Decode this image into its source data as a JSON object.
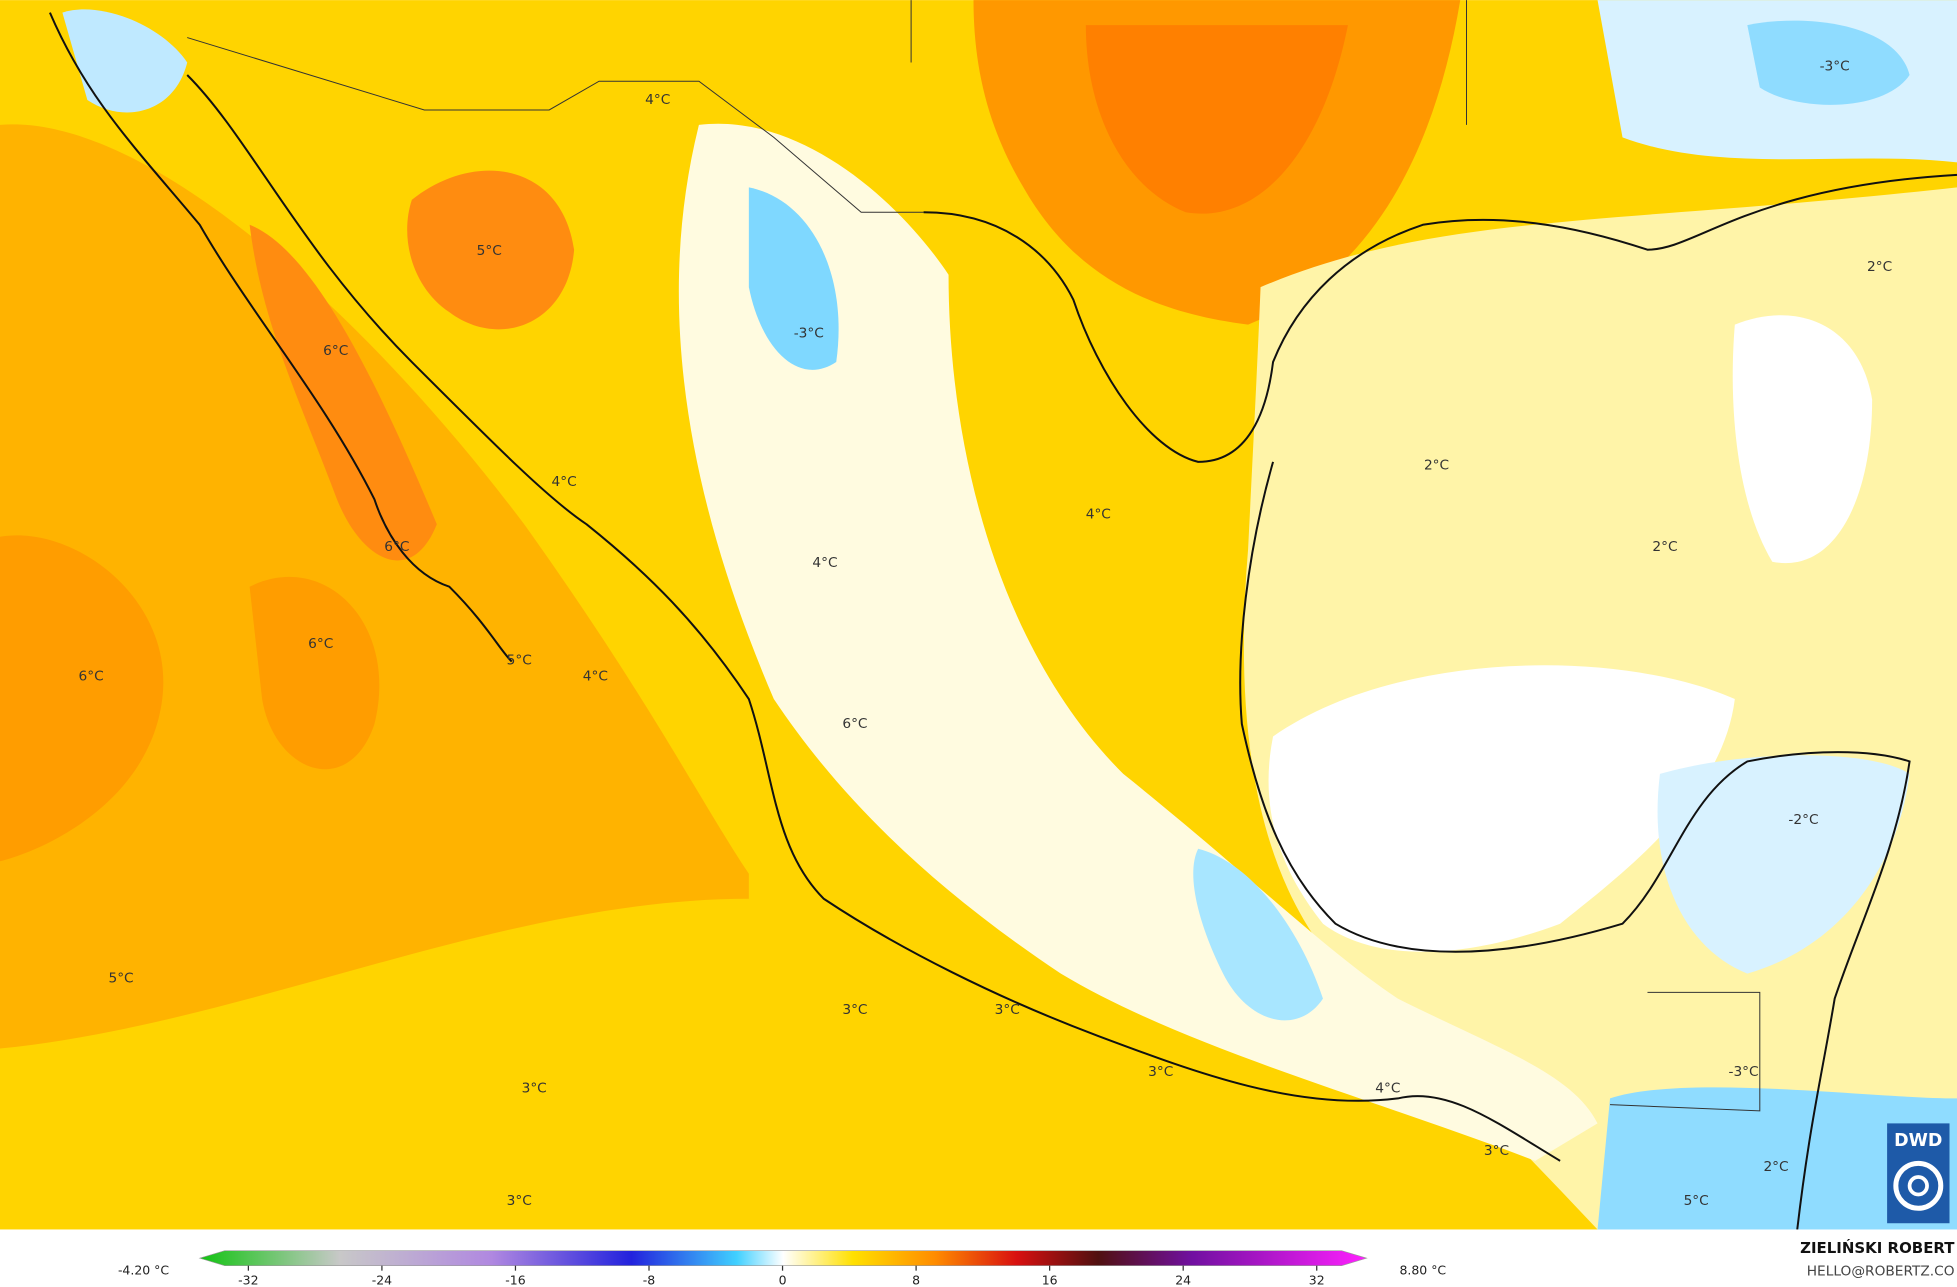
{
  "map": {
    "contour_labels": [
      "4°C",
      "5°C",
      "6°C",
      "-3°C",
      "-3°C",
      "2°C",
      "4°C",
      "2°C",
      "4°C",
      "6°C",
      "2°C",
      "4°C",
      "6°C",
      "5°C",
      "4°C",
      "6°C",
      "6°C",
      "-2°C",
      "5°C",
      "3°C",
      "3°C",
      "3°C",
      "-3°C",
      "4°C",
      "3°C",
      "3°C",
      "2°C",
      "3°C",
      "5°C"
    ]
  },
  "colorbar": {
    "range": [
      -32,
      32
    ],
    "ticks": [
      -32,
      -24,
      -16,
      -8,
      0,
      8,
      16,
      24,
      32
    ],
    "min_label": "-4.20 °C",
    "max_label": "8.80 °C"
  },
  "credit": {
    "author": "ZIELIŃSKI ROBERT",
    "email": "HELLO@ROBERTZ.CO"
  },
  "logo": "DWD"
}
